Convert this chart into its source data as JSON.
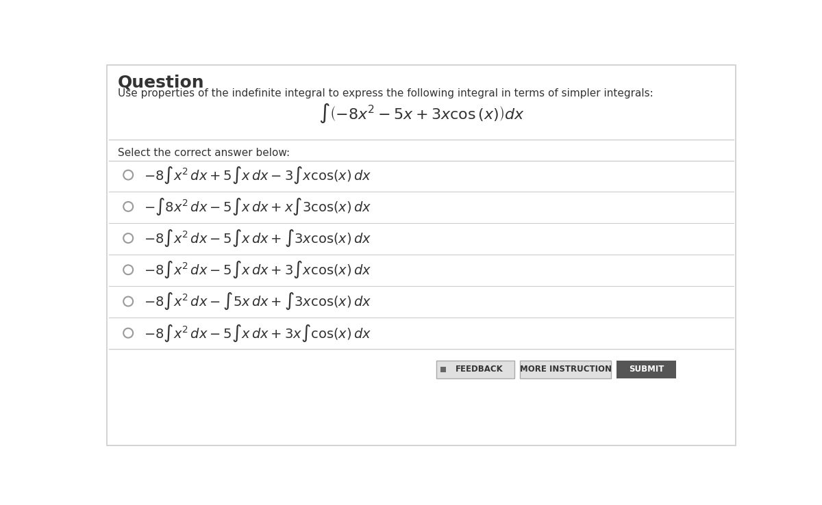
{
  "title": "Question",
  "subtitle": "Use properties of the indefinite integral to express the following integral in terms of simpler integrals:",
  "main_integral": "$\\int \\left(-8x^2 - 5x + 3x\\cos\\left(x\\right)\\right) dx$",
  "select_label": "Select the correct answer below:",
  "options": [
    "$-8\\int x^2\\, dx + 5\\int x\\, dx - 3\\int x\\cos(x)\\, dx$",
    "$-\\int 8x^2\\, dx - 5\\int x\\, dx + x\\int 3\\cos(x)\\, dx$",
    "$-8\\int x^2\\, dx - 5\\int x\\, dx + \\int 3x\\cos(x)\\, dx$",
    "$-8\\int x^2\\, dx - 5\\int x\\, dx + 3\\int x\\cos(x)\\, dx$",
    "$-8\\int x^2\\, dx - \\int 5x\\, dx + \\int 3x\\cos(x)\\, dx$",
    "$-8\\int x^2\\, dx - 5\\int x\\, dx + 3x\\int \\cos(x)\\, dx$"
  ],
  "bg_color": "#ffffff",
  "text_color": "#333333",
  "divider_color": "#cccccc",
  "button_feedback_bg": "#e0e0e0",
  "button_feedback_text": "#333333",
  "button_more_bg": "#e0e0e0",
  "button_more_text": "#333333",
  "button_submit_bg": "#555555",
  "button_submit_text": "#ffffff",
  "title_fontsize": 18,
  "subtitle_fontsize": 11,
  "main_integral_fontsize": 16,
  "option_fontsize": 14,
  "select_fontsize": 11
}
